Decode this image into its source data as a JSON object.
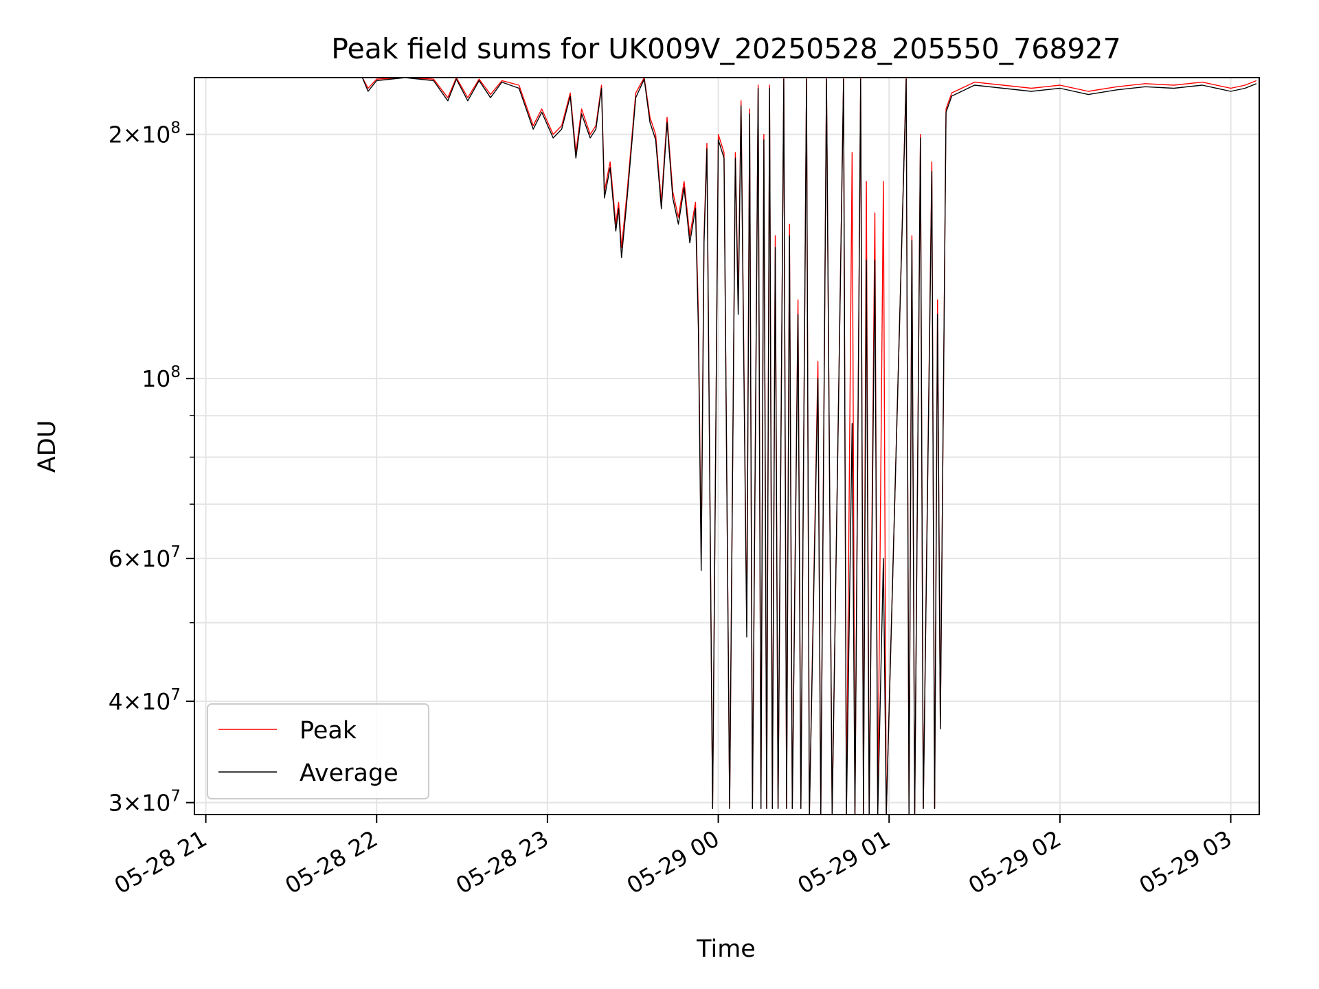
{
  "chart_data": {
    "type": "line",
    "title": "Peak field sums for UK009V_20250528_205550_768927",
    "xlabel": "Time",
    "ylabel": "ADU",
    "y_scale": "log",
    "ylim": [
      29000000,
      235000000
    ],
    "xlim": [
      "2025-05-28 20:56",
      "2025-05-29 03:10"
    ],
    "grid": true,
    "legend_position": "lower-left",
    "x_ticks": [
      {
        "value": "2025-05-28 21:00",
        "label": "05-28 21"
      },
      {
        "value": "2025-05-28 22:00",
        "label": "05-28 22"
      },
      {
        "value": "2025-05-28 23:00",
        "label": "05-28 23"
      },
      {
        "value": "2025-05-29 00:00",
        "label": "05-29 00"
      },
      {
        "value": "2025-05-29 01:00",
        "label": "05-29 01"
      },
      {
        "value": "2025-05-29 02:00",
        "label": "05-29 02"
      },
      {
        "value": "2025-05-29 03:00",
        "label": "05-29 03"
      }
    ],
    "y_ticks": [
      {
        "value": 30000000,
        "mantissa": "3",
        "exponent": "7"
      },
      {
        "value": 40000000,
        "mantissa": "4",
        "exponent": "7"
      },
      {
        "value": 60000000,
        "mantissa": "6",
        "exponent": "7"
      },
      {
        "value": 100000000,
        "mantissa": "",
        "exponent": "8"
      },
      {
        "value": 200000000,
        "mantissa": "2",
        "exponent": "8"
      }
    ],
    "y_minor_ticks": [
      50000000,
      70000000,
      80000000,
      90000000
    ],
    "series": [
      {
        "name": "Peak",
        "color": "#ff0000",
        "points": [
          [
            "2025-05-28 21:55",
            235000000
          ],
          [
            "2025-05-28 21:57",
            228000000
          ],
          [
            "2025-05-28 22:00",
            234000000
          ],
          [
            "2025-05-28 22:10",
            235000000
          ],
          [
            "2025-05-28 22:20",
            234000000
          ],
          [
            "2025-05-28 22:25",
            222000000
          ],
          [
            "2025-05-28 22:28",
            235000000
          ],
          [
            "2025-05-28 22:32",
            222000000
          ],
          [
            "2025-05-28 22:36",
            234000000
          ],
          [
            "2025-05-28 22:40",
            224000000
          ],
          [
            "2025-05-28 22:44",
            233000000
          ],
          [
            "2025-05-28 22:50",
            230000000
          ],
          [
            "2025-05-28 22:55",
            205000000
          ],
          [
            "2025-05-28 22:58",
            215000000
          ],
          [
            "2025-05-28 23:02",
            200000000
          ],
          [
            "2025-05-28 23:05",
            205000000
          ],
          [
            "2025-05-28 23:08",
            225000000
          ],
          [
            "2025-05-28 23:10",
            190000000
          ],
          [
            "2025-05-28 23:12",
            215000000
          ],
          [
            "2025-05-28 23:15",
            200000000
          ],
          [
            "2025-05-28 23:17",
            205000000
          ],
          [
            "2025-05-28 23:19",
            230000000
          ],
          [
            "2025-05-28 23:20",
            170000000
          ],
          [
            "2025-05-28 23:22",
            185000000
          ],
          [
            "2025-05-28 23:24",
            155000000
          ],
          [
            "2025-05-28 23:25",
            165000000
          ],
          [
            "2025-05-28 23:26",
            145000000
          ],
          [
            "2025-05-28 23:28",
            170000000
          ],
          [
            "2025-05-28 23:31",
            225000000
          ],
          [
            "2025-05-28 23:34",
            235000000
          ],
          [
            "2025-05-28 23:36",
            210000000
          ],
          [
            "2025-05-28 23:38",
            200000000
          ],
          [
            "2025-05-28 23:40",
            165000000
          ],
          [
            "2025-05-28 23:42",
            210000000
          ],
          [
            "2025-05-28 23:44",
            170000000
          ],
          [
            "2025-05-28 23:46",
            158000000
          ],
          [
            "2025-05-28 23:48",
            175000000
          ],
          [
            "2025-05-28 23:50",
            150000000
          ],
          [
            "2025-05-28 23:52",
            165000000
          ],
          [
            "2025-05-28 23:53",
            120000000
          ],
          [
            "2025-05-28 23:54",
            60000000
          ],
          [
            "2025-05-28 23:55",
            150000000
          ],
          [
            "2025-05-28 23:56",
            195000000
          ],
          [
            "2025-05-28 23:58",
            29500000
          ],
          [
            "2025-05-29 00:00",
            200000000
          ],
          [
            "2025-05-29 00:02",
            190000000
          ],
          [
            "2025-05-29 00:04",
            29500000
          ],
          [
            "2025-05-29 00:06",
            190000000
          ],
          [
            "2025-05-29 00:07",
            125000000
          ],
          [
            "2025-05-29 00:08",
            220000000
          ],
          [
            "2025-05-29 00:10",
            50000000
          ],
          [
            "2025-05-29 00:11",
            215000000
          ],
          [
            "2025-05-29 00:12",
            29500000
          ],
          [
            "2025-05-29 00:14",
            230000000
          ],
          [
            "2025-05-29 00:15",
            29500000
          ],
          [
            "2025-05-29 00:16",
            200000000
          ],
          [
            "2025-05-29 00:17",
            29500000
          ],
          [
            "2025-05-29 00:18",
            230000000
          ],
          [
            "2025-05-29 00:19",
            29500000
          ],
          [
            "2025-05-29 00:20",
            150000000
          ],
          [
            "2025-05-29 00:21",
            29500000
          ],
          [
            "2025-05-29 00:23",
            235000000
          ],
          [
            "2025-05-29 00:24",
            29500000
          ],
          [
            "2025-05-29 00:25",
            155000000
          ],
          [
            "2025-05-29 00:26",
            29500000
          ],
          [
            "2025-05-29 00:28",
            125000000
          ],
          [
            "2025-05-29 00:29",
            29500000
          ],
          [
            "2025-05-29 00:31",
            235000000
          ],
          [
            "2025-05-29 00:32",
            29000000
          ],
          [
            "2025-05-29 00:35",
            105000000
          ],
          [
            "2025-05-29 00:36",
            29000000
          ],
          [
            "2025-05-29 00:38",
            235000000
          ],
          [
            "2025-05-29 00:40",
            29000000
          ],
          [
            "2025-05-29 00:44",
            235000000
          ],
          [
            "2025-05-29 00:45",
            29000000
          ],
          [
            "2025-05-29 00:47",
            190000000
          ],
          [
            "2025-05-29 00:48",
            29000000
          ],
          [
            "2025-05-29 00:50",
            235000000
          ],
          [
            "2025-05-29 00:51",
            29000000
          ],
          [
            "2025-05-29 00:52",
            175000000
          ],
          [
            "2025-05-29 00:53",
            29000000
          ],
          [
            "2025-05-29 00:55",
            160000000
          ],
          [
            "2025-05-29 00:56",
            29000000
          ],
          [
            "2025-05-29 00:58",
            175000000
          ],
          [
            "2025-05-29 00:59",
            29000000
          ],
          [
            "2025-05-29 01:06",
            235000000
          ],
          [
            "2025-05-29 01:07",
            29000000
          ],
          [
            "2025-05-29 01:08",
            150000000
          ],
          [
            "2025-05-29 01:09",
            29000000
          ],
          [
            "2025-05-29 01:11",
            200000000
          ],
          [
            "2025-05-29 01:12",
            29500000
          ],
          [
            "2025-05-29 01:15",
            185000000
          ],
          [
            "2025-05-29 01:16",
            29500000
          ],
          [
            "2025-05-29 01:17",
            125000000
          ],
          [
            "2025-05-29 01:18",
            37000000
          ],
          [
            "2025-05-29 01:20",
            215000000
          ],
          [
            "2025-05-29 01:22",
            225000000
          ],
          [
            "2025-05-29 01:30",
            232000000
          ],
          [
            "2025-05-29 01:40",
            230000000
          ],
          [
            "2025-05-29 01:50",
            228000000
          ],
          [
            "2025-05-29 02:00",
            230000000
          ],
          [
            "2025-05-29 02:10",
            226000000
          ],
          [
            "2025-05-29 02:20",
            229000000
          ],
          [
            "2025-05-29 02:30",
            231000000
          ],
          [
            "2025-05-29 02:40",
            230000000
          ],
          [
            "2025-05-29 02:50",
            232000000
          ],
          [
            "2025-05-29 03:00",
            228000000
          ],
          [
            "2025-05-29 03:05",
            230000000
          ],
          [
            "2025-05-29 03:09",
            233000000
          ]
        ]
      },
      {
        "name": "Average",
        "color": "#000000",
        "points": [
          [
            "2025-05-28 21:55",
            235000000
          ],
          [
            "2025-05-28 21:57",
            226000000
          ],
          [
            "2025-05-28 22:00",
            233000000
          ],
          [
            "2025-05-28 22:10",
            235000000
          ],
          [
            "2025-05-28 22:20",
            233000000
          ],
          [
            "2025-05-28 22:25",
            220000000
          ],
          [
            "2025-05-28 22:28",
            234000000
          ],
          [
            "2025-05-28 22:32",
            220000000
          ],
          [
            "2025-05-28 22:36",
            233000000
          ],
          [
            "2025-05-28 22:40",
            222000000
          ],
          [
            "2025-05-28 22:44",
            232000000
          ],
          [
            "2025-05-28 22:50",
            228000000
          ],
          [
            "2025-05-28 22:55",
            203000000
          ],
          [
            "2025-05-28 22:58",
            213000000
          ],
          [
            "2025-05-28 23:02",
            198000000
          ],
          [
            "2025-05-28 23:05",
            203000000
          ],
          [
            "2025-05-28 23:08",
            223000000
          ],
          [
            "2025-05-28 23:10",
            187000000
          ],
          [
            "2025-05-28 23:12",
            212000000
          ],
          [
            "2025-05-28 23:15",
            198000000
          ],
          [
            "2025-05-28 23:17",
            203000000
          ],
          [
            "2025-05-28 23:19",
            228000000
          ],
          [
            "2025-05-28 23:20",
            167000000
          ],
          [
            "2025-05-28 23:22",
            182000000
          ],
          [
            "2025-05-28 23:24",
            152000000
          ],
          [
            "2025-05-28 23:25",
            162000000
          ],
          [
            "2025-05-28 23:26",
            141000000
          ],
          [
            "2025-05-28 23:28",
            167000000
          ],
          [
            "2025-05-28 23:31",
            222000000
          ],
          [
            "2025-05-28 23:34",
            234000000
          ],
          [
            "2025-05-28 23:36",
            207000000
          ],
          [
            "2025-05-28 23:38",
            197000000
          ],
          [
            "2025-05-28 23:40",
            162000000
          ],
          [
            "2025-05-28 23:42",
            207000000
          ],
          [
            "2025-05-28 23:44",
            167000000
          ],
          [
            "2025-05-28 23:46",
            155000000
          ],
          [
            "2025-05-28 23:48",
            172000000
          ],
          [
            "2025-05-28 23:50",
            147000000
          ],
          [
            "2025-05-28 23:52",
            162000000
          ],
          [
            "2025-05-28 23:53",
            115000000
          ],
          [
            "2025-05-28 23:54",
            58000000
          ],
          [
            "2025-05-28 23:55",
            147000000
          ],
          [
            "2025-05-28 23:56",
            192000000
          ],
          [
            "2025-05-28 23:58",
            29500000
          ],
          [
            "2025-05-29 00:00",
            197000000
          ],
          [
            "2025-05-29 00:02",
            187000000
          ],
          [
            "2025-05-29 00:04",
            29500000
          ],
          [
            "2025-05-29 00:06",
            187000000
          ],
          [
            "2025-05-29 00:07",
            120000000
          ],
          [
            "2025-05-29 00:08",
            217000000
          ],
          [
            "2025-05-29 00:10",
            48000000
          ],
          [
            "2025-05-29 00:11",
            212000000
          ],
          [
            "2025-05-29 00:12",
            29500000
          ],
          [
            "2025-05-29 00:14",
            228000000
          ],
          [
            "2025-05-29 00:15",
            29500000
          ],
          [
            "2025-05-29 00:16",
            197000000
          ],
          [
            "2025-05-29 00:17",
            29500000
          ],
          [
            "2025-05-29 00:18",
            228000000
          ],
          [
            "2025-05-29 00:19",
            29500000
          ],
          [
            "2025-05-29 00:20",
            145000000
          ],
          [
            "2025-05-29 00:21",
            29500000
          ],
          [
            "2025-05-29 00:23",
            234000000
          ],
          [
            "2025-05-29 00:24",
            29500000
          ],
          [
            "2025-05-29 00:25",
            150000000
          ],
          [
            "2025-05-29 00:26",
            29500000
          ],
          [
            "2025-05-29 00:28",
            120000000
          ],
          [
            "2025-05-29 00:29",
            29500000
          ],
          [
            "2025-05-29 00:31",
            234000000
          ],
          [
            "2025-05-29 00:32",
            29000000
          ],
          [
            "2025-05-29 00:35",
            100000000
          ],
          [
            "2025-05-29 00:36",
            29000000
          ],
          [
            "2025-05-29 00:38",
            234000000
          ],
          [
            "2025-05-29 00:40",
            29000000
          ],
          [
            "2025-05-29 00:44",
            234000000
          ],
          [
            "2025-05-29 00:45",
            29000000
          ],
          [
            "2025-05-29 00:47",
            88000000
          ],
          [
            "2025-05-29 00:48",
            29000000
          ],
          [
            "2025-05-29 00:50",
            234000000
          ],
          [
            "2025-05-29 00:51",
            29000000
          ],
          [
            "2025-05-29 00:52",
            140000000
          ],
          [
            "2025-05-29 00:53",
            29000000
          ],
          [
            "2025-05-29 00:55",
            140000000
          ],
          [
            "2025-05-29 00:56",
            29000000
          ],
          [
            "2025-05-29 00:58",
            60000000
          ],
          [
            "2025-05-29 00:59",
            29000000
          ],
          [
            "2025-05-29 01:06",
            234000000
          ],
          [
            "2025-05-29 01:07",
            29000000
          ],
          [
            "2025-05-29 01:08",
            148000000
          ],
          [
            "2025-05-29 01:09",
            29000000
          ],
          [
            "2025-05-29 01:11",
            198000000
          ],
          [
            "2025-05-29 01:12",
            29500000
          ],
          [
            "2025-05-29 01:15",
            180000000
          ],
          [
            "2025-05-29 01:16",
            29500000
          ],
          [
            "2025-05-29 01:17",
            120000000
          ],
          [
            "2025-05-29 01:18",
            37000000
          ],
          [
            "2025-05-29 01:20",
            213000000
          ],
          [
            "2025-05-29 01:22",
            223000000
          ],
          [
            "2025-05-29 01:30",
            230000000
          ],
          [
            "2025-05-29 01:40",
            228000000
          ],
          [
            "2025-05-29 01:50",
            226000000
          ],
          [
            "2025-05-29 02:00",
            228000000
          ],
          [
            "2025-05-29 02:10",
            224000000
          ],
          [
            "2025-05-29 02:20",
            227000000
          ],
          [
            "2025-05-29 02:30",
            229000000
          ],
          [
            "2025-05-29 02:40",
            228000000
          ],
          [
            "2025-05-29 02:50",
            230000000
          ],
          [
            "2025-05-29 03:00",
            226000000
          ],
          [
            "2025-05-29 03:05",
            228000000
          ],
          [
            "2025-05-29 03:09",
            231000000
          ]
        ]
      }
    ]
  }
}
